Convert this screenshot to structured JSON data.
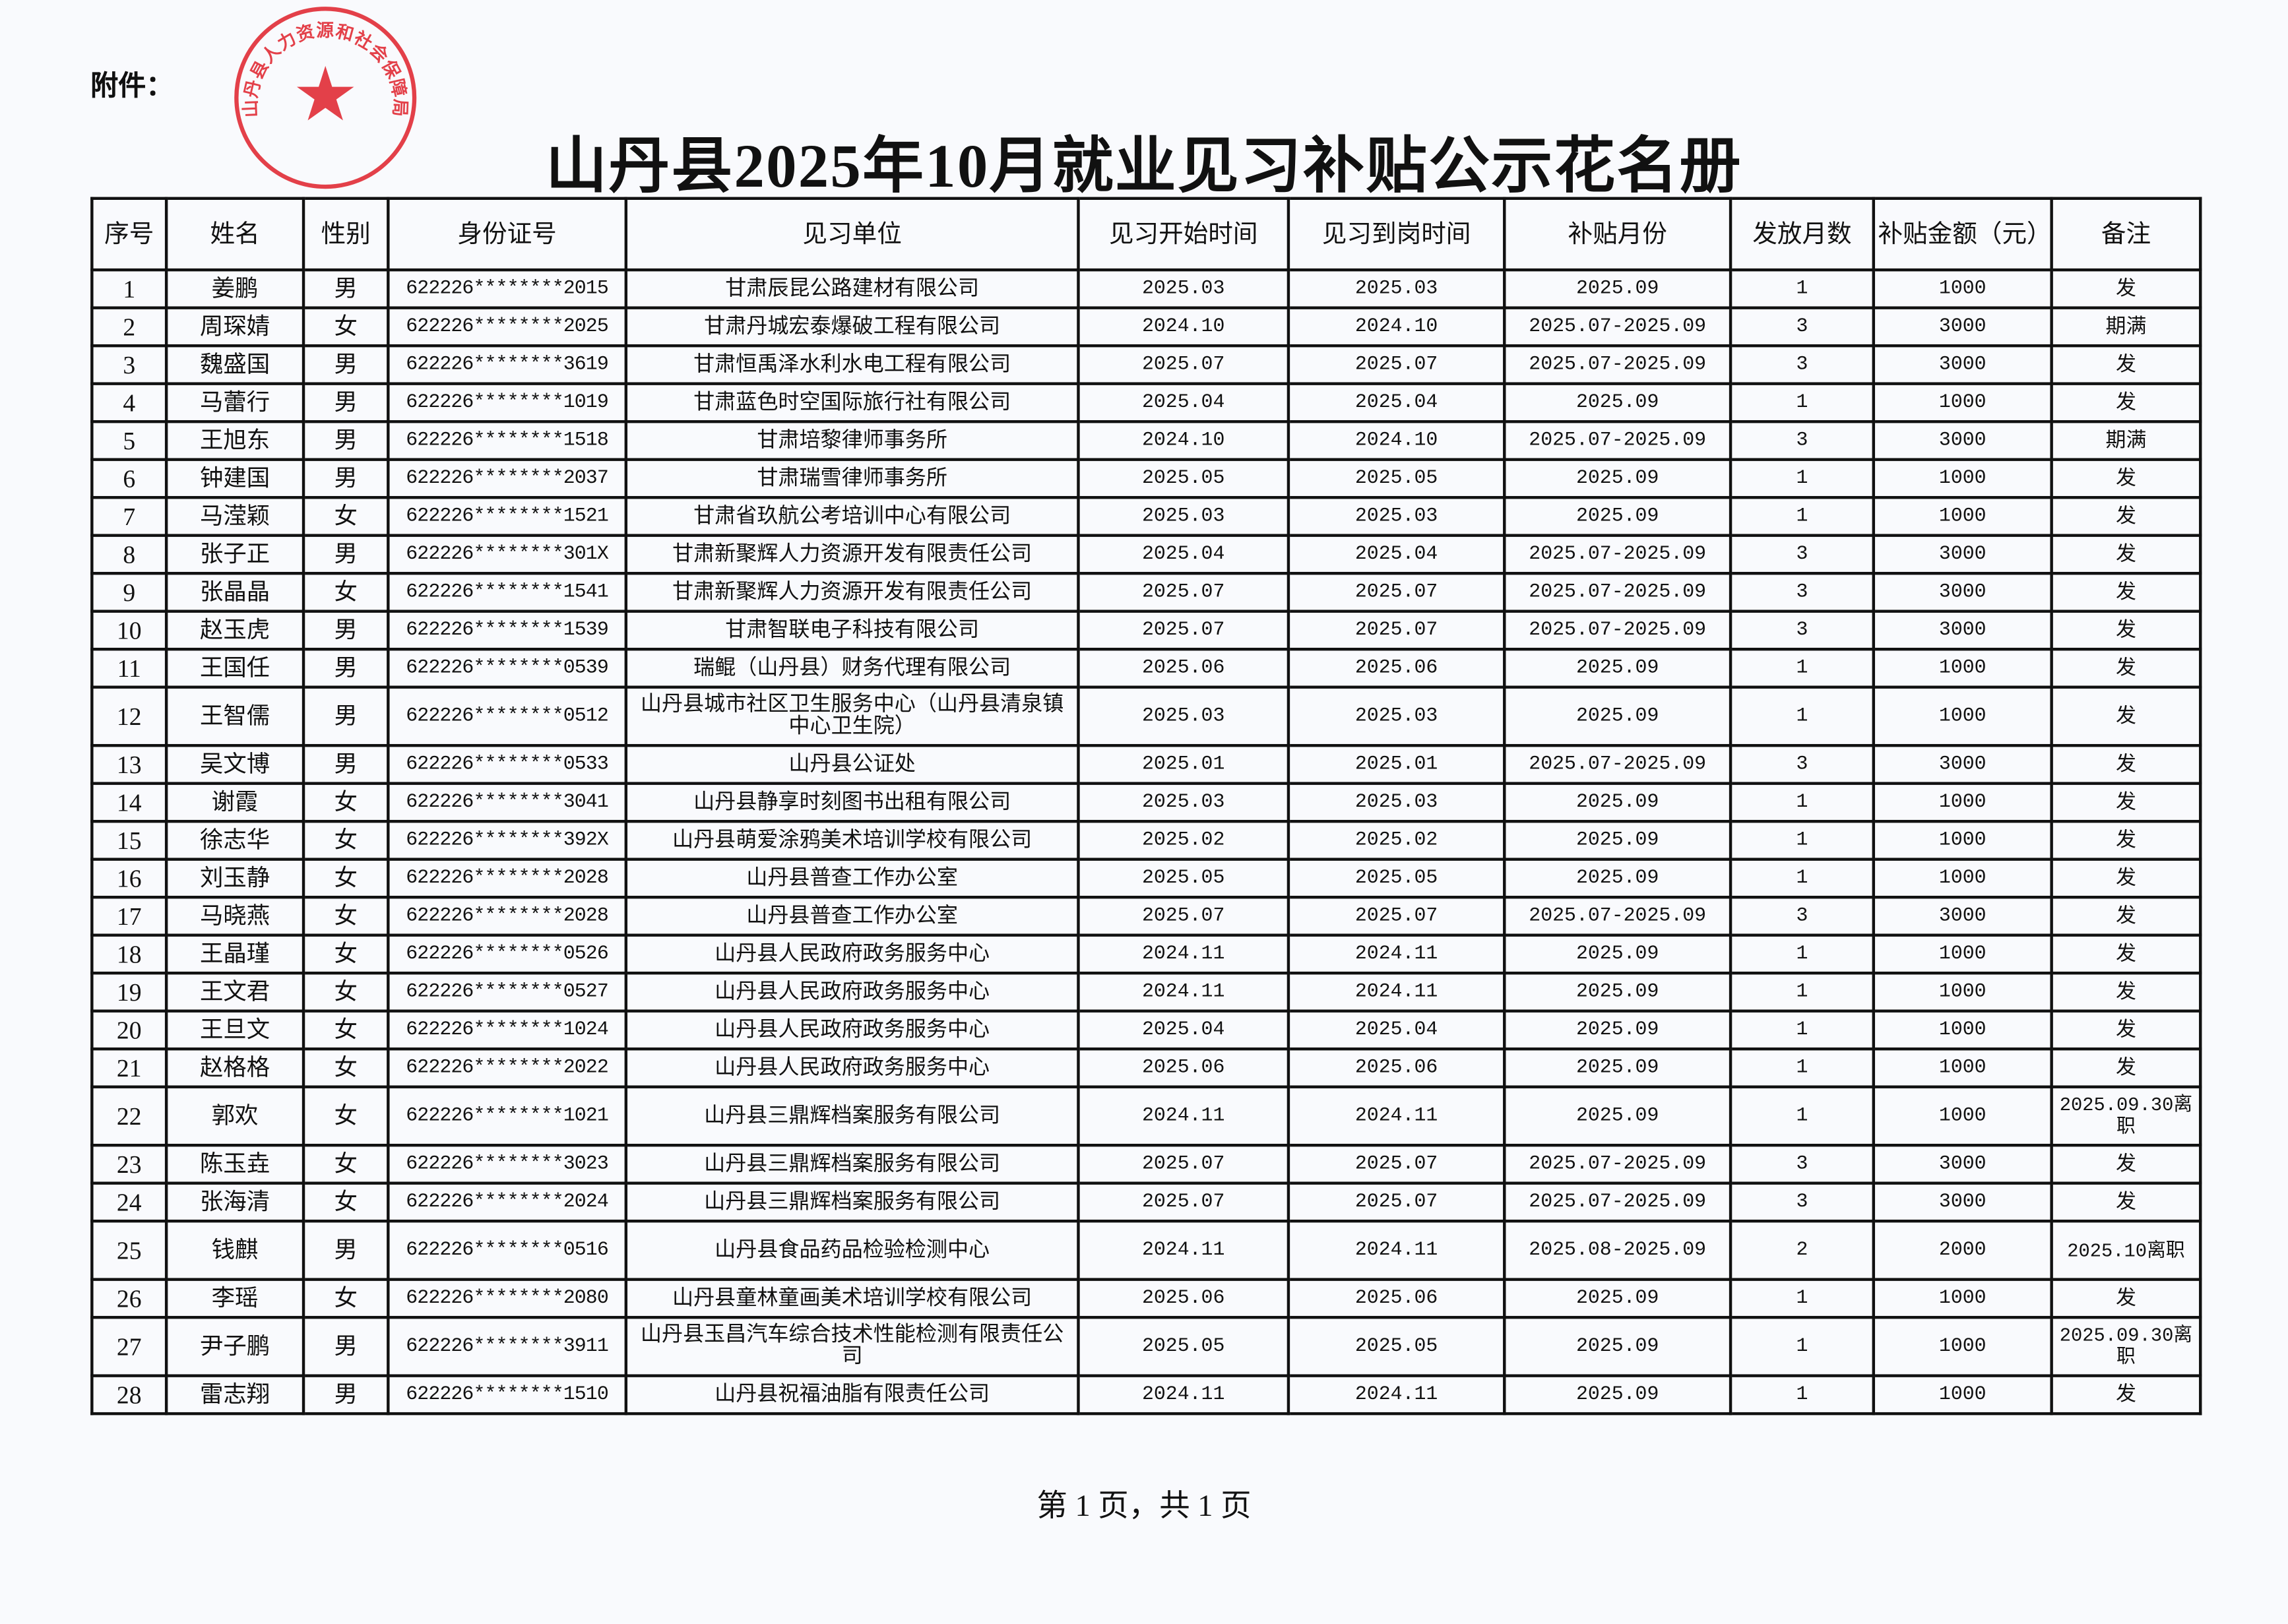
{
  "attachment_label": "附件：",
  "title": "山丹县2025年10月就业见习补贴公示花名册",
  "seal_text": "山丹县人力资源和社会保障局",
  "seal_color": "#e0202a",
  "headers": [
    "序号",
    "姓名",
    "性别",
    "身份证号",
    "见习单位",
    "见习开始时间",
    "见习到岗时间",
    "补贴月份",
    "发放月数",
    "补贴金额（元）",
    "备注"
  ],
  "rows": [
    [
      "1",
      "姜鹏",
      "男",
      "622226********2015",
      "甘肃辰昆公路建材有限公司",
      "2025.03",
      "2025.03",
      "2025.09",
      "1",
      "1000",
      "发"
    ],
    [
      "2",
      "周琛婧",
      "女",
      "622226********2025",
      "甘肃丹城宏泰爆破工程有限公司",
      "2024.10",
      "2024.10",
      "2025.07-2025.09",
      "3",
      "3000",
      "期满"
    ],
    [
      "3",
      "魏盛国",
      "男",
      "622226********3619",
      "甘肃恒禹泽水利水电工程有限公司",
      "2025.07",
      "2025.07",
      "2025.07-2025.09",
      "3",
      "3000",
      "发"
    ],
    [
      "4",
      "马蕾行",
      "男",
      "622226********1019",
      "甘肃蓝色时空国际旅行社有限公司",
      "2025.04",
      "2025.04",
      "2025.09",
      "1",
      "1000",
      "发"
    ],
    [
      "5",
      "王旭东",
      "男",
      "622226********1518",
      "甘肃培黎律师事务所",
      "2024.10",
      "2024.10",
      "2025.07-2025.09",
      "3",
      "3000",
      "期满"
    ],
    [
      "6",
      "钟建国",
      "男",
      "622226********2037",
      "甘肃瑞雪律师事务所",
      "2025.05",
      "2025.05",
      "2025.09",
      "1",
      "1000",
      "发"
    ],
    [
      "7",
      "马滢颖",
      "女",
      "622226********1521",
      "甘肃省玖航公考培训中心有限公司",
      "2025.03",
      "2025.03",
      "2025.09",
      "1",
      "1000",
      "发"
    ],
    [
      "8",
      "张子正",
      "男",
      "622226********301X",
      "甘肃新聚辉人力资源开发有限责任公司",
      "2025.04",
      "2025.04",
      "2025.07-2025.09",
      "3",
      "3000",
      "发"
    ],
    [
      "9",
      "张晶晶",
      "女",
      "622226********1541",
      "甘肃新聚辉人力资源开发有限责任公司",
      "2025.07",
      "2025.07",
      "2025.07-2025.09",
      "3",
      "3000",
      "发"
    ],
    [
      "10",
      "赵玉虎",
      "男",
      "622226********1539",
      "甘肃智联电子科技有限公司",
      "2025.07",
      "2025.07",
      "2025.07-2025.09",
      "3",
      "3000",
      "发"
    ],
    [
      "11",
      "王国任",
      "男",
      "622226********0539",
      "瑞鲲（山丹县）财务代理有限公司",
      "2025.06",
      "2025.06",
      "2025.09",
      "1",
      "1000",
      "发"
    ],
    [
      "12",
      "王智儒",
      "男",
      "622226********0512",
      "山丹县城市社区卫生服务中心（山丹县清泉镇中心卫生院）",
      "2025.03",
      "2025.03",
      "2025.09",
      "1",
      "1000",
      "发"
    ],
    [
      "13",
      "吴文博",
      "男",
      "622226********0533",
      "山丹县公证处",
      "2025.01",
      "2025.01",
      "2025.07-2025.09",
      "3",
      "3000",
      "发"
    ],
    [
      "14",
      "谢霞",
      "女",
      "622226********3041",
      "山丹县静享时刻图书出租有限公司",
      "2025.03",
      "2025.03",
      "2025.09",
      "1",
      "1000",
      "发"
    ],
    [
      "15",
      "徐志华",
      "女",
      "622226********392X",
      "山丹县萌爱涂鸦美术培训学校有限公司",
      "2025.02",
      "2025.02",
      "2025.09",
      "1",
      "1000",
      "发"
    ],
    [
      "16",
      "刘玉静",
      "女",
      "622226********2028",
      "山丹县普查工作办公室",
      "2025.05",
      "2025.05",
      "2025.09",
      "1",
      "1000",
      "发"
    ],
    [
      "17",
      "马晓燕",
      "女",
      "622226********2028",
      "山丹县普查工作办公室",
      "2025.07",
      "2025.07",
      "2025.07-2025.09",
      "3",
      "3000",
      "发"
    ],
    [
      "18",
      "王晶瑾",
      "女",
      "622226********0526",
      "山丹县人民政府政务服务中心",
      "2024.11",
      "2024.11",
      "2025.09",
      "1",
      "1000",
      "发"
    ],
    [
      "19",
      "王文君",
      "女",
      "622226********0527",
      "山丹县人民政府政务服务中心",
      "2024.11",
      "2024.11",
      "2025.09",
      "1",
      "1000",
      "发"
    ],
    [
      "20",
      "王旦文",
      "女",
      "622226********1024",
      "山丹县人民政府政务服务中心",
      "2025.04",
      "2025.04",
      "2025.09",
      "1",
      "1000",
      "发"
    ],
    [
      "21",
      "赵格格",
      "女",
      "622226********2022",
      "山丹县人民政府政务服务中心",
      "2025.06",
      "2025.06",
      "2025.09",
      "1",
      "1000",
      "发"
    ],
    [
      "22",
      "郭欢",
      "女",
      "622226********1021",
      "山丹县三鼎辉档案服务有限公司",
      "2024.11",
      "2024.11",
      "2025.09",
      "1",
      "1000",
      "2025.09.30离职"
    ],
    [
      "23",
      "陈玉垚",
      "女",
      "622226********3023",
      "山丹县三鼎辉档案服务有限公司",
      "2025.07",
      "2025.07",
      "2025.07-2025.09",
      "3",
      "3000",
      "发"
    ],
    [
      "24",
      "张海清",
      "女",
      "622226********2024",
      "山丹县三鼎辉档案服务有限公司",
      "2025.07",
      "2025.07",
      "2025.07-2025.09",
      "3",
      "3000",
      "发"
    ],
    [
      "25",
      "钱麒",
      "男",
      "622226********0516",
      "山丹县食品药品检验检测中心",
      "2024.11",
      "2024.11",
      "2025.08-2025.09",
      "2",
      "2000",
      "2025.10离职"
    ],
    [
      "26",
      "李瑶",
      "女",
      "622226********2080",
      "山丹县童林童画美术培训学校有限公司",
      "2025.06",
      "2025.06",
      "2025.09",
      "1",
      "1000",
      "发"
    ],
    [
      "27",
      "尹子鹏",
      "男",
      "622226********3911",
      "山丹县玉昌汽车综合技术性能检测有限责任公司",
      "2025.05",
      "2025.05",
      "2025.09",
      "1",
      "1000",
      "2025.09.30离职"
    ],
    [
      "28",
      "雷志翔",
      "男",
      "622226********1510",
      "山丹县祝福油脂有限责任公司",
      "2024.11",
      "2024.11",
      "2025.09",
      "1",
      "1000",
      "发"
    ]
  ],
  "footer": "第 1 页，共 1 页"
}
